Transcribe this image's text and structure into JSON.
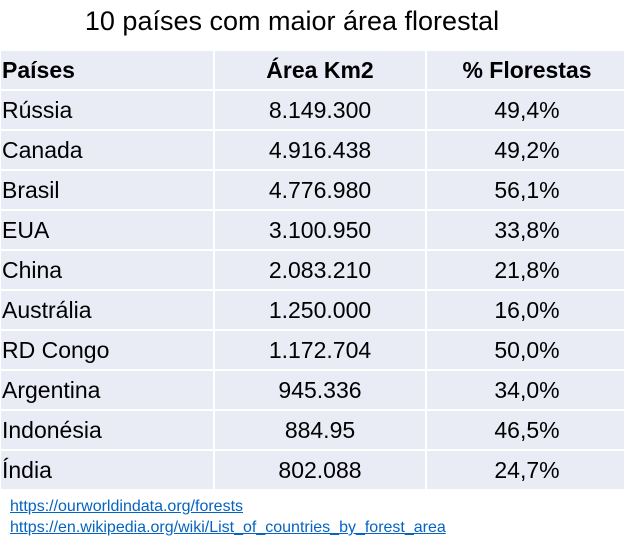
{
  "title": "10 países com maior área florestal",
  "table": {
    "headers": [
      "Países",
      "Área Km2",
      "% Florestas"
    ],
    "rows": [
      [
        "Rússia",
        "8.149.300",
        "49,4%"
      ],
      [
        "Canada",
        "4.916.438",
        "49,2%"
      ],
      [
        "Brasil",
        "4.776.980",
        "56,1%"
      ],
      [
        "EUA",
        "3.100.950",
        "33,8%"
      ],
      [
        "China",
        "2.083.210",
        "21,8%"
      ],
      [
        "Austrália",
        "1.250.000",
        "16,0%"
      ],
      [
        "RD Congo",
        "1.172.704",
        "50,0%"
      ],
      [
        "Argentina",
        "945.336",
        "34,0%"
      ],
      [
        "Indonésia",
        "884.95",
        "46,5%"
      ],
      [
        "Índia",
        "802.088",
        "24,7%"
      ]
    ]
  },
  "sources": [
    "https://ourworldindata.org/forests",
    "https://en.wikipedia.org/wiki/List_of_countries_by_forest_area"
  ],
  "colors": {
    "row_bg": "#e9ebf5",
    "link": "#0563c1"
  }
}
